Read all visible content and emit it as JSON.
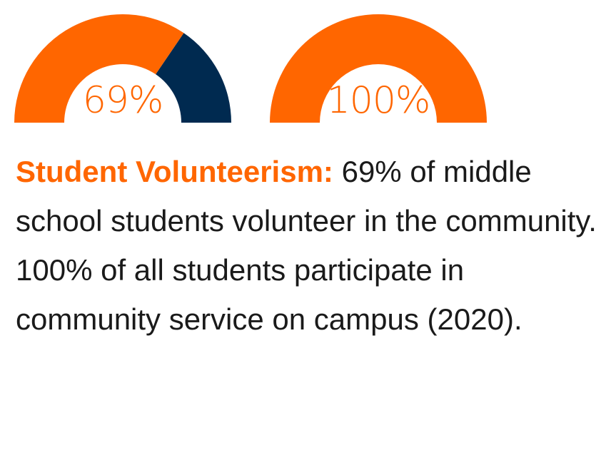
{
  "colors": {
    "accent": "#ff6600",
    "dark": "#002a50",
    "text": "#1a1a1a"
  },
  "chart_data": [
    {
      "type": "pie",
      "style": "half-donut gauge",
      "label": "69%",
      "value": 69,
      "max": 100,
      "fill_color": "#ff6600",
      "remainder_color": "#002a50"
    },
    {
      "type": "pie",
      "style": "half-donut gauge",
      "label": "100%",
      "value": 100,
      "max": 100,
      "fill_color": "#ff6600",
      "remainder_color": "#002a50"
    }
  ],
  "description": {
    "lead": "Student Volunteerism:",
    "body": " 69% of middle school students volunteer in the community. 100% of all students participate in community service on campus (2020)."
  }
}
